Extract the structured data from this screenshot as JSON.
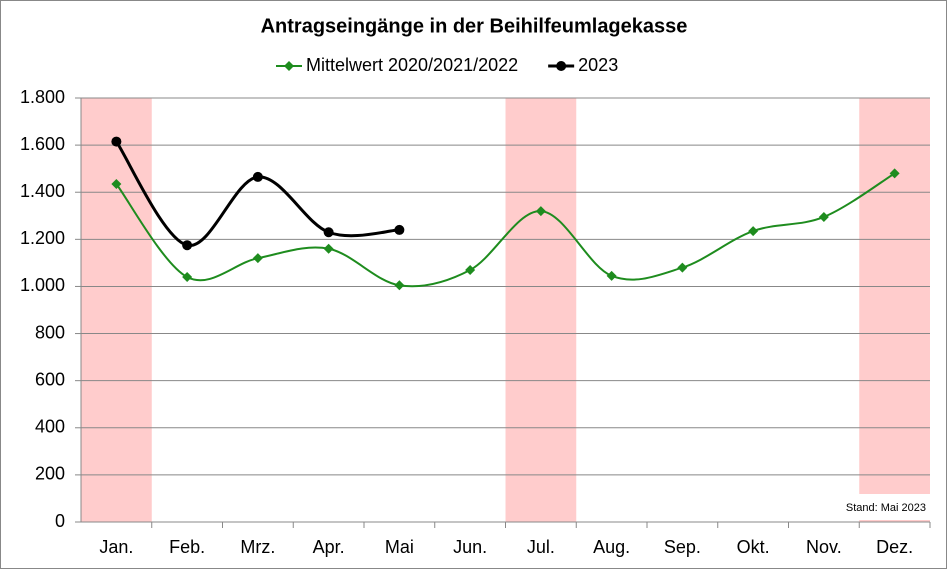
{
  "chart_data": {
    "type": "line",
    "title": "Antragseingänge in der Beihilfeumlagekasse",
    "categories": [
      "Jan.",
      "Feb.",
      "Mrz.",
      "Apr.",
      "Mai",
      "Jun.",
      "Jul.",
      "Aug.",
      "Sep.",
      "Okt.",
      "Nov.",
      "Dez."
    ],
    "series": [
      {
        "name": "Mittelwert 2020/2021/2022",
        "color": "#1e8c1e",
        "marker": "diamond",
        "values": [
          1435,
          1040,
          1120,
          1160,
          1005,
          1070,
          1320,
          1045,
          1080,
          1235,
          1295,
          1480
        ]
      },
      {
        "name": "2023",
        "color": "#000000",
        "marker": "circle",
        "values": [
          1615,
          1175,
          1465,
          1230,
          1240,
          null,
          null,
          null,
          null,
          null,
          null,
          null
        ]
      }
    ],
    "ylim": [
      0,
      1800
    ],
    "yticks": [
      0,
      200,
      400,
      600,
      800,
      {
        "value": 1000,
        "label": "1.000"
      },
      {
        "value": 1200,
        "label": "1.200"
      },
      {
        "value": 1400,
        "label": "1.400"
      },
      {
        "value": 1600,
        "label": "1.600"
      },
      {
        "value": 1800,
        "label": "1.800"
      }
    ],
    "grid": true,
    "smooth": true,
    "legend": "top",
    "highlight_indices": [
      0,
      6,
      11
    ],
    "highlight_color": "#ffcccc",
    "annotation": "Stand: Mai 2023"
  }
}
